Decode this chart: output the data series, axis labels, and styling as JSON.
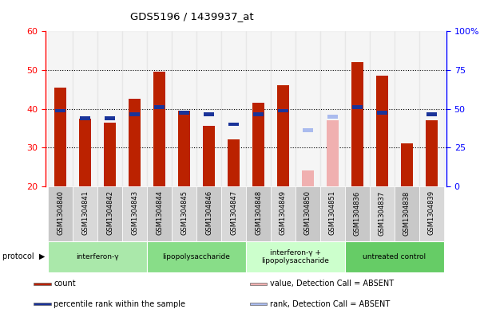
{
  "title": "GDS5196 / 1439937_at",
  "samples": [
    "GSM1304840",
    "GSM1304841",
    "GSM1304842",
    "GSM1304843",
    "GSM1304844",
    "GSM1304845",
    "GSM1304846",
    "GSM1304847",
    "GSM1304848",
    "GSM1304849",
    "GSM1304850",
    "GSM1304851",
    "GSM1304836",
    "GSM1304837",
    "GSM1304838",
    "GSM1304839"
  ],
  "count_values": [
    45.5,
    37.5,
    36.5,
    42.5,
    49.5,
    39.5,
    35.5,
    32.0,
    41.5,
    46.0,
    null,
    null,
    52.0,
    48.5,
    31.0,
    37.0
  ],
  "rank_values": [
    39.5,
    37.5,
    37.5,
    38.5,
    40.5,
    39.0,
    38.5,
    36.0,
    38.5,
    39.5,
    null,
    null,
    40.5,
    39.0,
    null,
    38.5
  ],
  "absent_count": [
    null,
    null,
    null,
    null,
    null,
    null,
    null,
    null,
    null,
    null,
    24.0,
    37.0,
    null,
    null,
    null,
    null
  ],
  "absent_rank": [
    null,
    null,
    null,
    null,
    null,
    null,
    null,
    null,
    null,
    null,
    34.5,
    38.0,
    null,
    null,
    null,
    null
  ],
  "protocols": [
    {
      "label": "interferon-γ",
      "start": 0,
      "end": 4,
      "color": "#aae8aa"
    },
    {
      "label": "lipopolysaccharide",
      "start": 4,
      "end": 8,
      "color": "#88dd88"
    },
    {
      "label": "interferon-γ +\nlipopolysaccharide",
      "start": 8,
      "end": 12,
      "color": "#ccffcc"
    },
    {
      "label": "untreated control",
      "start": 12,
      "end": 16,
      "color": "#66cc66"
    }
  ],
  "ylim_left": [
    20,
    60
  ],
  "ylim_right": [
    0,
    100
  ],
  "y_ticks_left": [
    20,
    30,
    40,
    50,
    60
  ],
  "y_ticks_right": [
    0,
    25,
    50,
    75,
    100
  ],
  "bar_color_red": "#bb2200",
  "bar_color_blue": "#1a3399",
  "bar_color_pink": "#f0b0b0",
  "bar_color_lightblue": "#aabbee",
  "legend_items": [
    {
      "label": "count",
      "color": "#bb2200"
    },
    {
      "label": "percentile rank within the sample",
      "color": "#1a3399"
    },
    {
      "label": "value, Detection Call = ABSENT",
      "color": "#f0b0b0"
    },
    {
      "label": "rank, Detection Call = ABSENT",
      "color": "#aabbee"
    }
  ]
}
